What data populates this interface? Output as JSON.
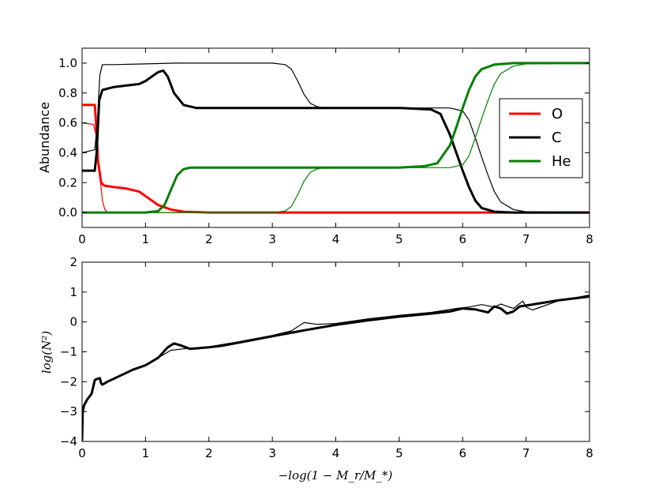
{
  "chart_data": [
    {
      "type": "line",
      "xlabel": "",
      "ylabel": "Abundance",
      "xlim": [
        0,
        8
      ],
      "ylim": [
        -0.1,
        1.1
      ],
      "xticks": [
        "0",
        "1",
        "2",
        "3",
        "4",
        "5",
        "6",
        "7",
        "8"
      ],
      "yticks": [
        "0.0",
        "0.2",
        "0.4",
        "0.6",
        "0.8",
        "1.0"
      ],
      "legend": {
        "position": "right",
        "entries": [
          {
            "label": "O",
            "color": "#ff0000"
          },
          {
            "label": "C",
            "color": "#000000"
          },
          {
            "label": "He",
            "color": "#008000"
          }
        ]
      },
      "series": [
        {
          "name": "O",
          "color": "#ff0000",
          "width": "thick",
          "x": [
            0,
            0.2,
            0.22,
            0.25,
            0.3,
            0.35,
            0.5,
            0.7,
            0.9,
            1.0,
            1.2,
            1.4,
            1.6,
            2,
            3,
            4,
            5,
            6,
            7,
            8
          ],
          "y": [
            0.72,
            0.72,
            0.6,
            0.35,
            0.2,
            0.18,
            0.17,
            0.16,
            0.14,
            0.11,
            0.05,
            0.02,
            0.005,
            0,
            0,
            0,
            0,
            0,
            0,
            0
          ]
        },
        {
          "name": "O",
          "color": "#ff0000",
          "width": "thin",
          "x": [
            0,
            0.18,
            0.22,
            0.27,
            0.32,
            0.36,
            0.4,
            1,
            2,
            4,
            6,
            8
          ],
          "y": [
            0.6,
            0.59,
            0.52,
            0.3,
            0.08,
            0.02,
            0,
            0,
            0,
            0,
            0,
            0
          ]
        },
        {
          "name": "C",
          "color": "#000000",
          "width": "thick",
          "x": [
            0,
            0.2,
            0.23,
            0.27,
            0.32,
            0.5,
            0.7,
            0.9,
            1.0,
            1.1,
            1.2,
            1.28,
            1.35,
            1.45,
            1.6,
            1.8,
            2.0,
            3,
            4,
            5,
            5.5,
            5.65,
            5.8,
            5.9,
            6.0,
            6.1,
            6.2,
            6.3,
            6.5,
            6.8,
            7,
            8
          ],
          "y": [
            0.28,
            0.28,
            0.4,
            0.75,
            0.82,
            0.84,
            0.85,
            0.86,
            0.88,
            0.91,
            0.94,
            0.95,
            0.91,
            0.8,
            0.72,
            0.7,
            0.7,
            0.7,
            0.7,
            0.7,
            0.69,
            0.66,
            0.52,
            0.4,
            0.28,
            0.17,
            0.08,
            0.03,
            0.005,
            0,
            0,
            0
          ]
        },
        {
          "name": "C",
          "color": "#000000",
          "width": "thin",
          "x": [
            0,
            0.2,
            0.24,
            0.28,
            0.32,
            0.5,
            1,
            1.5,
            2,
            3,
            3.2,
            3.3,
            3.4,
            3.5,
            3.6,
            3.7,
            3.8,
            4,
            5,
            5.8,
            6.0,
            6.1,
            6.2,
            6.3,
            6.4,
            6.5,
            6.6,
            6.8,
            7,
            8
          ],
          "y": [
            0.4,
            0.42,
            0.6,
            0.92,
            0.99,
            0.99,
            0.995,
            1.0,
            1.0,
            1.0,
            0.99,
            0.96,
            0.88,
            0.79,
            0.73,
            0.71,
            0.7,
            0.7,
            0.7,
            0.7,
            0.68,
            0.62,
            0.5,
            0.37,
            0.25,
            0.14,
            0.07,
            0.02,
            0.005,
            0
          ]
        },
        {
          "name": "He",
          "color": "#008000",
          "width": "thick",
          "x": [
            0,
            1.0,
            1.2,
            1.3,
            1.4,
            1.5,
            1.6,
            1.7,
            1.8,
            2,
            3,
            4,
            5,
            5.4,
            5.6,
            5.8,
            5.9,
            6.0,
            6.1,
            6.2,
            6.3,
            6.5,
            6.8,
            7,
            8
          ],
          "y": [
            0,
            0,
            0.01,
            0.05,
            0.15,
            0.25,
            0.29,
            0.3,
            0.3,
            0.3,
            0.3,
            0.3,
            0.3,
            0.31,
            0.33,
            0.45,
            0.57,
            0.7,
            0.82,
            0.91,
            0.96,
            0.99,
            1.0,
            1.0,
            1.0
          ]
        },
        {
          "name": "He",
          "color": "#008000",
          "width": "thin",
          "x": [
            0,
            1,
            2,
            3,
            3.2,
            3.3,
            3.4,
            3.5,
            3.6,
            3.7,
            3.8,
            4,
            5,
            5.8,
            6.0,
            6.1,
            6.2,
            6.3,
            6.4,
            6.5,
            6.6,
            6.8,
            7,
            8
          ],
          "y": [
            0,
            0,
            0,
            0,
            0.01,
            0.04,
            0.12,
            0.21,
            0.27,
            0.29,
            0.3,
            0.3,
            0.3,
            0.3,
            0.32,
            0.38,
            0.5,
            0.63,
            0.75,
            0.86,
            0.93,
            0.98,
            0.995,
            1.0
          ]
        }
      ]
    },
    {
      "type": "line",
      "xlabel": "−log(1 − M_r/M_*)",
      "ylabel": "log(N²)",
      "xlim": [
        0,
        8
      ],
      "ylim": [
        -4,
        2
      ],
      "xticks": [
        "0",
        "1",
        "2",
        "3",
        "4",
        "5",
        "6",
        "7",
        "8"
      ],
      "yticks": [
        "−4",
        "−3",
        "−2",
        "−1",
        "0",
        "1",
        "2"
      ],
      "series": [
        {
          "name": "",
          "color": "#000000",
          "width": "thick",
          "x": [
            0.0,
            0.01,
            0.03,
            0.08,
            0.15,
            0.2,
            0.22,
            0.28,
            0.3,
            0.32,
            0.4,
            0.6,
            0.8,
            1.0,
            1.2,
            1.35,
            1.45,
            1.55,
            1.7,
            2.0,
            2.2,
            2.5,
            3.0,
            3.5,
            4.0,
            4.5,
            5.0,
            5.5,
            5.8,
            6.0,
            6.2,
            6.4,
            6.5,
            6.6,
            6.7,
            6.8,
            6.9,
            7.0,
            7.5,
            8.0
          ],
          "y": [
            -3.95,
            -3.0,
            -2.8,
            -2.6,
            -2.4,
            -1.95,
            -1.92,
            -1.88,
            -2.05,
            -2.1,
            -2.0,
            -1.8,
            -1.6,
            -1.45,
            -1.2,
            -0.85,
            -0.72,
            -0.78,
            -0.9,
            -0.85,
            -0.8,
            -0.68,
            -0.48,
            -0.28,
            -0.1,
            0.05,
            0.18,
            0.28,
            0.35,
            0.45,
            0.42,
            0.32,
            0.52,
            0.45,
            0.28,
            0.35,
            0.52,
            0.55,
            0.72,
            0.85
          ]
        },
        {
          "name": "",
          "color": "#000000",
          "width": "thin",
          "x": [
            0.0,
            0.01,
            0.03,
            0.08,
            0.15,
            0.2,
            0.22,
            0.28,
            0.3,
            0.32,
            0.4,
            0.6,
            0.8,
            1.0,
            1.2,
            1.4,
            1.6,
            1.8,
            2.0,
            2.5,
            3.0,
            3.3,
            3.5,
            3.7,
            4.0,
            4.5,
            5.0,
            5.5,
            5.9,
            6.1,
            6.3,
            6.5,
            6.6,
            6.8,
            6.95,
            7.0,
            7.1,
            7.5,
            8.0
          ],
          "y": [
            -3.95,
            -3.0,
            -2.8,
            -2.6,
            -2.4,
            -1.95,
            -1.92,
            -1.88,
            -2.05,
            -2.1,
            -2.0,
            -1.8,
            -1.6,
            -1.45,
            -1.2,
            -0.95,
            -0.9,
            -0.87,
            -0.83,
            -0.65,
            -0.45,
            -0.3,
            -0.02,
            -0.08,
            -0.05,
            0.1,
            0.22,
            0.32,
            0.45,
            0.5,
            0.58,
            0.5,
            0.6,
            0.45,
            0.7,
            0.5,
            0.4,
            0.7,
            0.9
          ]
        }
      ]
    }
  ]
}
